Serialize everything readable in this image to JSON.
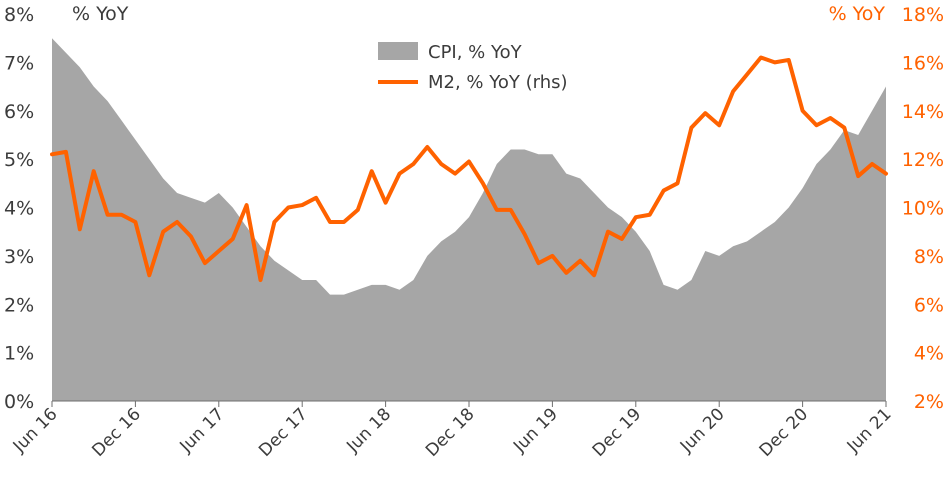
{
  "chart_data": {
    "type": "area+line",
    "left_unit": "% YoY",
    "right_unit": "% YoY",
    "y_left": {
      "min": 0,
      "max": 8,
      "ticks": [
        "0%",
        "1%",
        "2%",
        "3%",
        "4%",
        "5%",
        "6%",
        "7%",
        "8%"
      ]
    },
    "y_right": {
      "min": 2,
      "max": 18,
      "ticks": [
        "2%",
        "4%",
        "6%",
        "8%",
        "10%",
        "12%",
        "14%",
        "16%",
        "18%"
      ]
    },
    "x_labels": [
      "Jun 16",
      "Dec 16",
      "Jun 17",
      "Dec 17",
      "Jun 18",
      "Dec 18",
      "Jun 19",
      "Dec 19",
      "Jun 20",
      "Dec 20",
      "Jun 21"
    ],
    "x_label_month_index": [
      0,
      6,
      12,
      18,
      24,
      30,
      36,
      42,
      48,
      54,
      60
    ],
    "months": [
      "2016-06",
      "2016-07",
      "2016-08",
      "2016-09",
      "2016-10",
      "2016-11",
      "2016-12",
      "2017-01",
      "2017-02",
      "2017-03",
      "2017-04",
      "2017-05",
      "2017-06",
      "2017-07",
      "2017-08",
      "2017-09",
      "2017-10",
      "2017-11",
      "2017-12",
      "2018-01",
      "2018-02",
      "2018-03",
      "2018-04",
      "2018-05",
      "2018-06",
      "2018-07",
      "2018-08",
      "2018-09",
      "2018-10",
      "2018-11",
      "2018-12",
      "2019-01",
      "2019-02",
      "2019-03",
      "2019-04",
      "2019-05",
      "2019-06",
      "2019-07",
      "2019-08",
      "2019-09",
      "2019-10",
      "2019-11",
      "2019-12",
      "2020-01",
      "2020-02",
      "2020-03",
      "2020-04",
      "2020-05",
      "2020-06",
      "2020-07",
      "2020-08",
      "2020-09",
      "2020-10",
      "2020-11",
      "2020-12",
      "2021-01",
      "2021-02",
      "2021-03",
      "2021-04",
      "2021-05",
      "2021-06"
    ],
    "series": [
      {
        "name": "CPI, % YoY",
        "axis": "left",
        "kind": "area",
        "color": "#a6a6a6",
        "values": [
          7.5,
          7.2,
          6.9,
          6.5,
          6.2,
          5.8,
          5.4,
          5.0,
          4.6,
          4.3,
          4.2,
          4.1,
          4.3,
          4.0,
          3.6,
          3.2,
          2.9,
          2.7,
          2.5,
          2.5,
          2.2,
          2.2,
          2.3,
          2.4,
          2.4,
          2.3,
          2.5,
          3.0,
          3.3,
          3.5,
          3.8,
          4.3,
          4.9,
          5.2,
          5.2,
          5.1,
          5.1,
          4.7,
          4.6,
          4.3,
          4.0,
          3.8,
          3.5,
          3.1,
          2.4,
          2.3,
          2.5,
          3.1,
          3.0,
          3.2,
          3.3,
          3.5,
          3.7,
          4.0,
          4.4,
          4.9,
          5.2,
          5.6,
          5.5,
          6.0,
          6.5
        ]
      },
      {
        "name": "M2, % YoY (rhs)",
        "axis": "right",
        "kind": "line",
        "color": "#ff6200",
        "values": [
          12.2,
          12.3,
          9.1,
          11.5,
          9.7,
          9.7,
          9.4,
          7.2,
          9.0,
          9.4,
          8.8,
          7.7,
          8.2,
          8.7,
          10.1,
          7.0,
          9.4,
          10.0,
          10.1,
          10.4,
          9.4,
          9.4,
          9.9,
          11.5,
          10.2,
          11.4,
          11.8,
          12.5,
          11.8,
          11.4,
          11.9,
          11.0,
          9.9,
          9.9,
          8.9,
          7.7,
          8.0,
          7.3,
          7.8,
          7.2,
          9.0,
          8.7,
          9.6,
          9.7,
          10.7,
          11.0,
          13.3,
          13.9,
          13.4,
          14.8,
          15.5,
          16.2,
          16.0,
          16.1,
          14.0,
          13.4,
          13.7,
          13.3,
          11.3,
          11.8,
          11.4
        ]
      }
    ]
  }
}
